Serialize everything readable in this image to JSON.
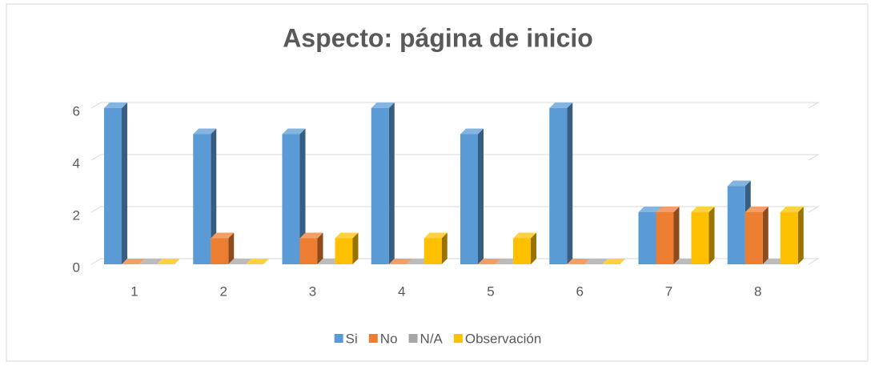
{
  "chart_data": {
    "type": "bar",
    "title": "Aspecto: página de inicio",
    "categories": [
      "1",
      "2",
      "3",
      "4",
      "5",
      "6",
      "7",
      "8"
    ],
    "series": [
      {
        "name": "Si",
        "color": "#5b9bd5",
        "values": [
          6,
          5,
          5,
          6,
          5,
          6,
          2,
          3
        ]
      },
      {
        "name": "No",
        "color": "#ed7d31",
        "values": [
          0,
          1,
          1,
          0,
          0,
          0,
          2,
          2
        ]
      },
      {
        "name": "N/A",
        "color": "#a5a5a5",
        "values": [
          0,
          0,
          0,
          0,
          0,
          0,
          0,
          0
        ]
      },
      {
        "name": "Observación",
        "color": "#ffc000",
        "values": [
          0,
          0,
          1,
          1,
          1,
          0,
          2,
          2
        ]
      }
    ],
    "ylim": [
      0,
      6
    ],
    "yticks": [
      0,
      2,
      4,
      6
    ],
    "grid": true,
    "legend": "bottom"
  }
}
